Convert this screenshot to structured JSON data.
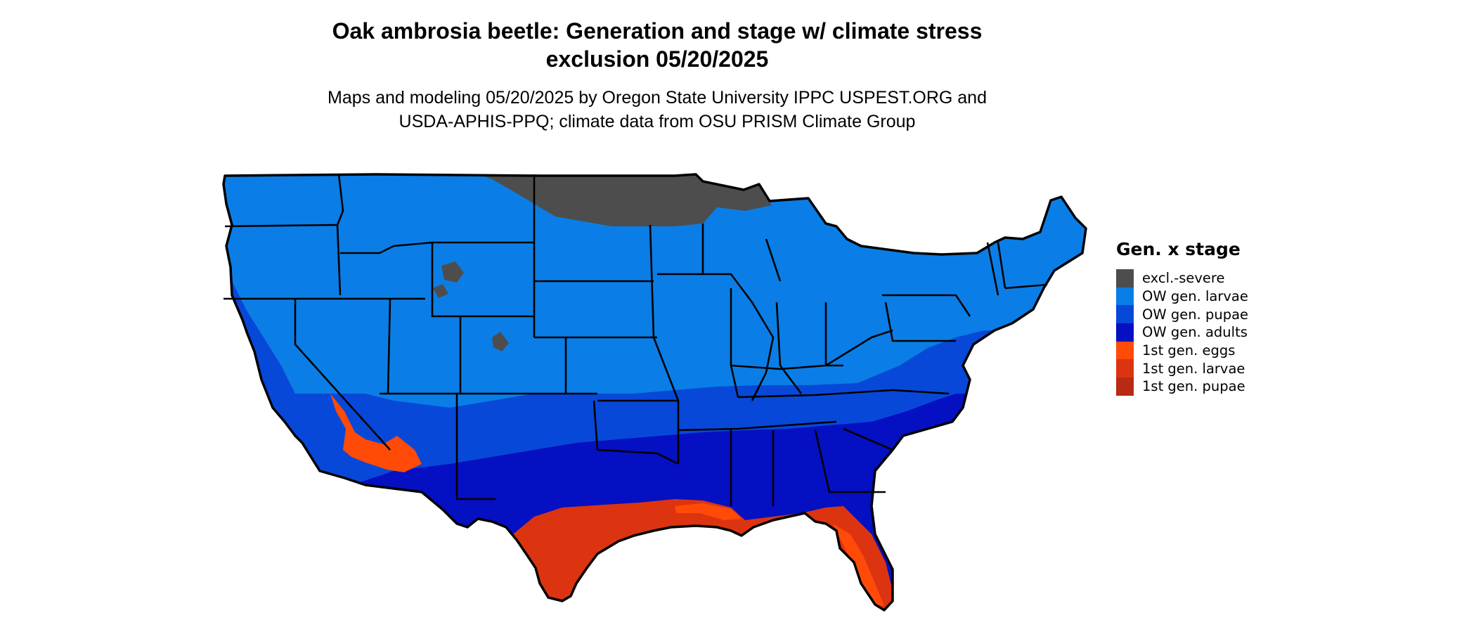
{
  "title_line1": "Oak ambrosia beetle: Generation and stage w/ climate stress",
  "title_line2": "exclusion 05/20/2025",
  "subtitle_line1": "Maps and modeling 05/20/2025 by Oregon State University IPPC USPEST.ORG and",
  "subtitle_line2": "USDA-APHIS-PPQ; climate data from OSU PRISM Climate Group",
  "legend": {
    "title": "Gen. x stage",
    "items": [
      {
        "label": "excl.-severe",
        "color": "#4d4d4d"
      },
      {
        "label": "OW gen. larvae",
        "color": "#0a7ee6"
      },
      {
        "label": "OW gen. pupae",
        "color": "#0848d8"
      },
      {
        "label": "OW gen. adults",
        "color": "#0510c2"
      },
      {
        "label": "1st gen. eggs",
        "color": "#ff4a08"
      },
      {
        "label": "1st gen. larvae",
        "color": "#dc3410"
      },
      {
        "label": "1st gen. pupae",
        "color": "#b82a12"
      }
    ]
  }
}
